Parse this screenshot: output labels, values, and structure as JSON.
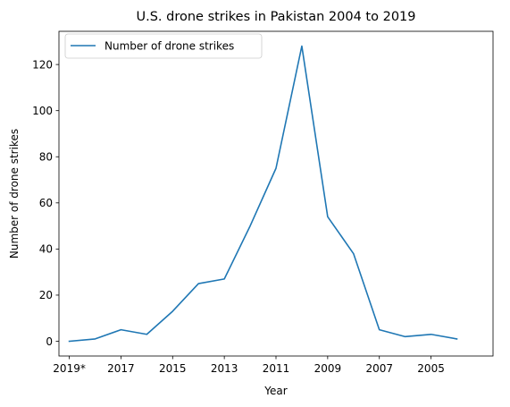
{
  "chart_data": {
    "type": "line",
    "title": "U.S. drone strikes in Pakistan 2004 to 2019",
    "xlabel": "Year",
    "ylabel": "Number of drone strikes",
    "x": [
      "2019*",
      "2018",
      "2017",
      "2016",
      "2015",
      "2014",
      "2013",
      "2012",
      "2011",
      "2010",
      "2009",
      "2008",
      "2007",
      "2006",
      "2005",
      "2004"
    ],
    "x_tick_labels": [
      "2019*",
      "2017",
      "2015",
      "2013",
      "2011",
      "2009",
      "2007",
      "2005"
    ],
    "series": [
      {
        "name": "Number of drone strikes",
        "values": [
          0,
          1,
          5,
          3,
          13,
          25,
          27,
          50,
          75,
          128,
          54,
          38,
          5,
          2,
          3,
          1
        ],
        "color": "#1f77b4"
      }
    ],
    "y_ticks": [
      0,
      20,
      40,
      60,
      80,
      100,
      120
    ],
    "ylim": [
      -6.4,
      134.4
    ],
    "legend_position": "upper left",
    "grid": false
  }
}
